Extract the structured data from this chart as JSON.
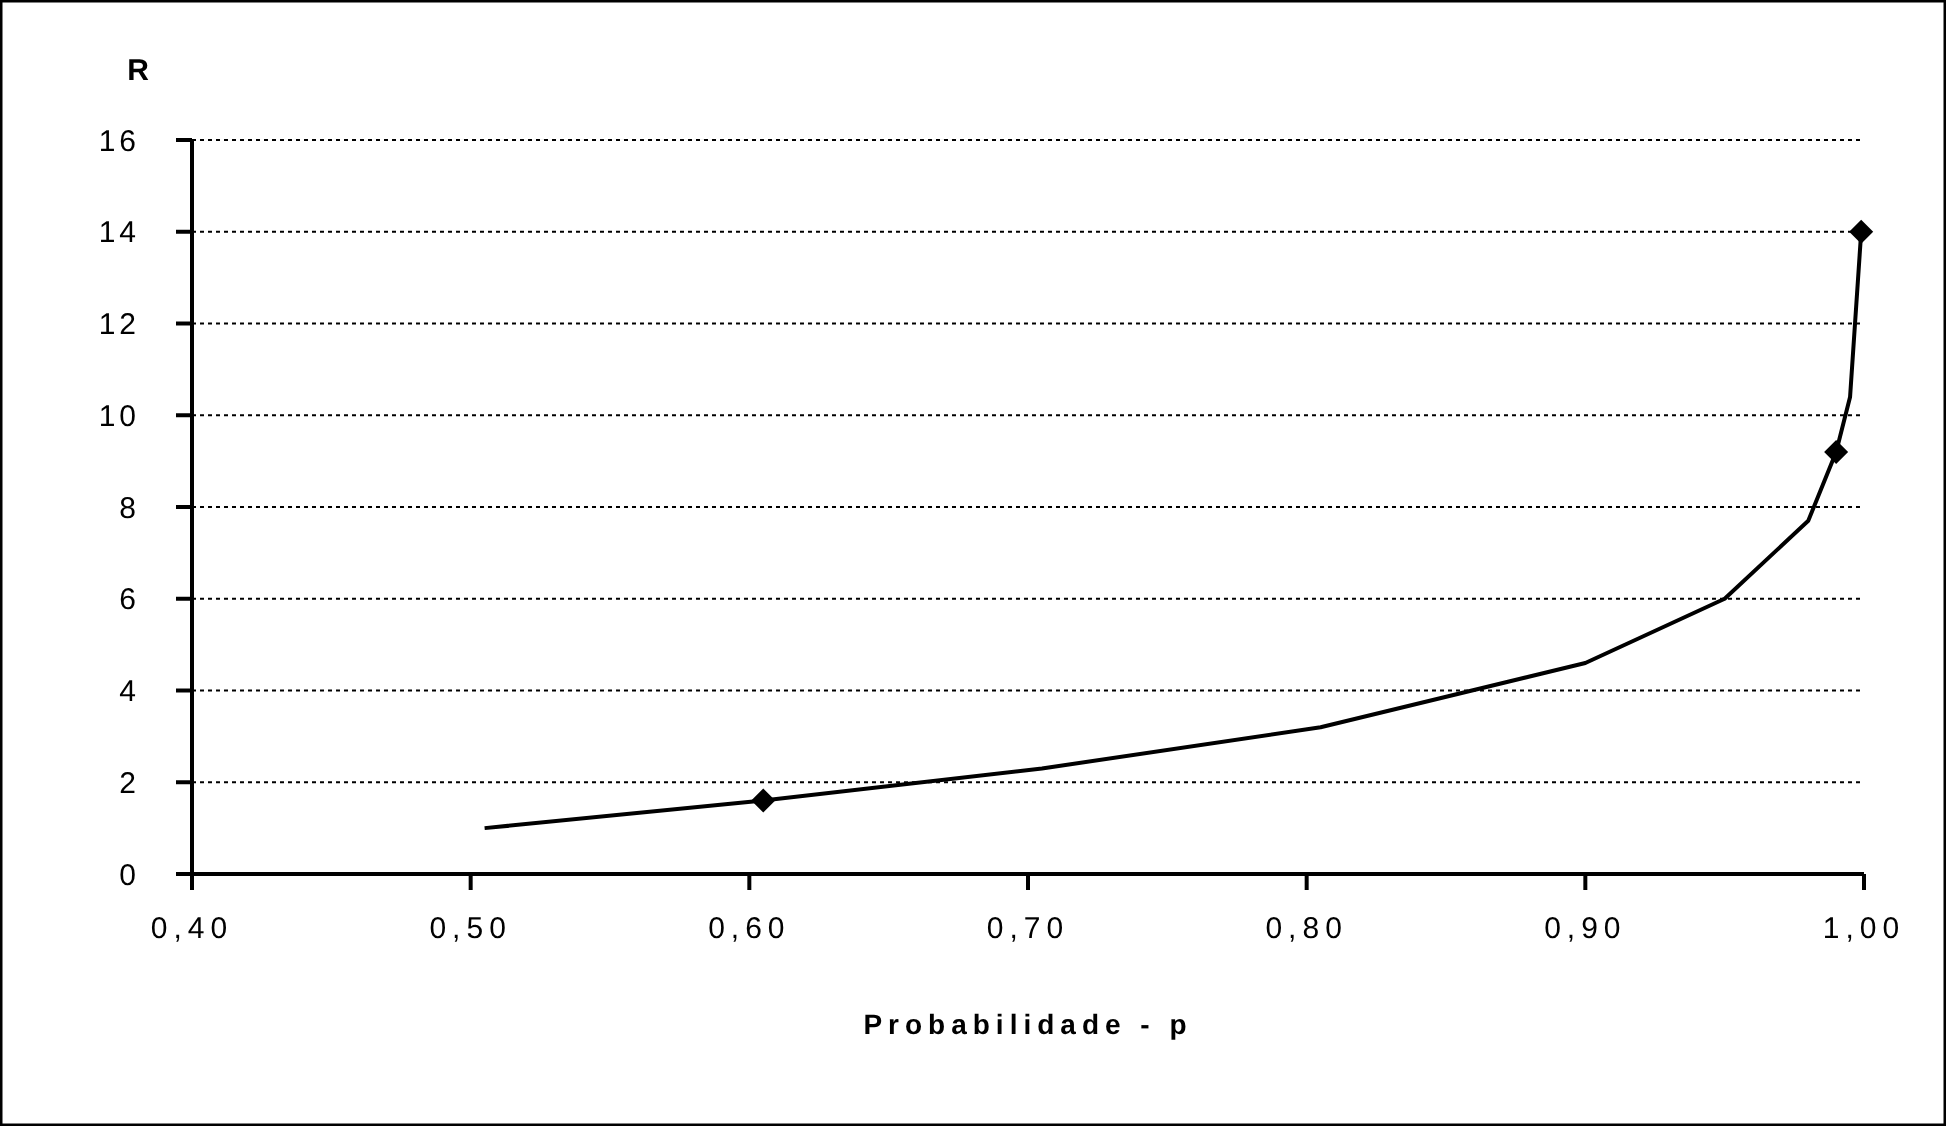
{
  "chart_data": {
    "type": "line",
    "ylabel": "R",
    "xlabel": "Probabilidade - p",
    "xlim": [
      0.4,
      1.0
    ],
    "ylim": [
      0,
      16
    ],
    "xticks": [
      {
        "value": 0.4,
        "label": "0,40"
      },
      {
        "value": 0.5,
        "label": "0,50"
      },
      {
        "value": 0.6,
        "label": "0,60"
      },
      {
        "value": 0.7,
        "label": "0,70"
      },
      {
        "value": 0.8,
        "label": "0,80"
      },
      {
        "value": 0.9,
        "label": "0,90"
      },
      {
        "value": 1.0,
        "label": "1,00"
      }
    ],
    "yticks": [
      0,
      2,
      4,
      6,
      8,
      10,
      12,
      14,
      16
    ],
    "grid": "y",
    "line_style": "solid",
    "series": [
      {
        "color": "#000000",
        "marker": "none",
        "x": [
          0.505,
          0.605,
          0.705,
          0.805,
          0.9,
          0.95,
          0.98,
          0.99,
          0.995,
          0.999
        ],
        "values": [
          1.0,
          1.6,
          2.3,
          3.2,
          4.6,
          6.0,
          7.7,
          9.2,
          10.4,
          14.0
        ]
      },
      {
        "type": "scatter",
        "color": "#000000",
        "marker": "diamond",
        "x": [
          0.605,
          0.99,
          0.999
        ],
        "values": [
          1.6,
          9.2,
          14.0
        ]
      }
    ]
  }
}
